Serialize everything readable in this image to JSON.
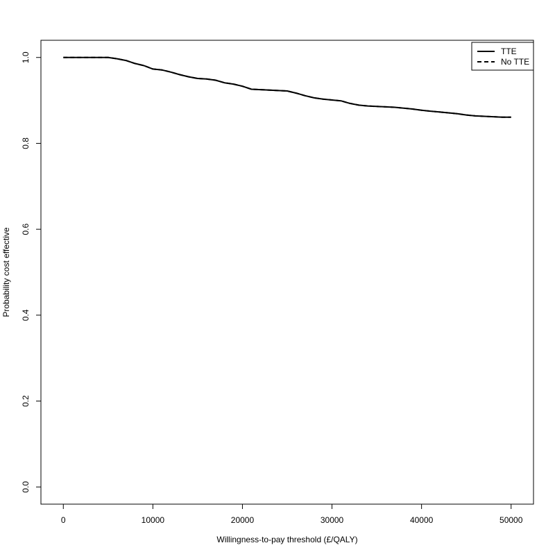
{
  "chart_data": {
    "type": "line",
    "title": "",
    "xlabel": "Willingness-to-pay threshold (£/QALY)",
    "ylabel": "Probability cost effective",
    "xlim": [
      -2500,
      52500
    ],
    "ylim": [
      -0.04,
      1.04
    ],
    "xticks": [
      0,
      10000,
      20000,
      30000,
      40000,
      50000
    ],
    "xtick_labels": [
      "0",
      "10000",
      "20000",
      "30000",
      "40000",
      "50000"
    ],
    "yticks": [
      0.0,
      0.2,
      0.4,
      0.6,
      0.8,
      1.0
    ],
    "ytick_labels": [
      "0.0",
      "0.2",
      "0.4",
      "0.6",
      "0.8",
      "1.0"
    ],
    "grid": false,
    "legend_position": "top-right",
    "series": [
      {
        "name": "TTE",
        "line_style": "solid",
        "color": "#000000",
        "x": [
          0,
          2000,
          4000,
          5000,
          6000,
          7000,
          8000,
          9000,
          10000,
          11000,
          12000,
          13000,
          14000,
          15000,
          16000,
          17000,
          18000,
          19000,
          20000,
          21000,
          22000,
          23000,
          24000,
          25000,
          26000,
          27000,
          28000,
          29000,
          30000,
          31000,
          32000,
          33000,
          34000,
          35000,
          36000,
          37000,
          38000,
          39000,
          40000,
          41000,
          42000,
          43000,
          44000,
          45000,
          46000,
          47000,
          48000,
          49000,
          50000
        ],
        "y": [
          1.0,
          1.0,
          1.0,
          1.0,
          0.997,
          0.993,
          0.986,
          0.981,
          0.973,
          0.971,
          0.966,
          0.96,
          0.955,
          0.951,
          0.95,
          0.947,
          0.941,
          0.938,
          0.933,
          0.926,
          0.925,
          0.924,
          0.923,
          0.922,
          0.917,
          0.911,
          0.906,
          0.903,
          0.901,
          0.899,
          0.893,
          0.889,
          0.887,
          0.886,
          0.885,
          0.884,
          0.882,
          0.88,
          0.877,
          0.875,
          0.873,
          0.871,
          0.869,
          0.866,
          0.864,
          0.863,
          0.862,
          0.861,
          0.861
        ]
      },
      {
        "name": "No TTE",
        "line_style": "dashed",
        "color": "#000000",
        "x": [
          0,
          2000,
          4000,
          5000,
          6000,
          7000,
          8000,
          9000,
          10000,
          11000,
          12000,
          13000,
          14000,
          15000,
          16000,
          17000,
          18000,
          19000,
          20000,
          21000,
          22000,
          23000,
          24000,
          25000,
          26000,
          27000,
          28000,
          29000,
          30000,
          31000,
          32000,
          33000,
          34000,
          35000,
          36000,
          37000,
          38000,
          39000,
          40000,
          41000,
          42000,
          43000,
          44000,
          45000,
          46000,
          47000,
          48000,
          49000,
          50000
        ],
        "y": [
          1.0,
          1.0,
          1.0,
          1.0,
          0.997,
          0.993,
          0.986,
          0.981,
          0.973,
          0.971,
          0.966,
          0.96,
          0.955,
          0.951,
          0.95,
          0.947,
          0.941,
          0.938,
          0.933,
          0.926,
          0.925,
          0.924,
          0.923,
          0.922,
          0.917,
          0.911,
          0.906,
          0.903,
          0.901,
          0.899,
          0.893,
          0.889,
          0.887,
          0.886,
          0.885,
          0.884,
          0.882,
          0.88,
          0.877,
          0.875,
          0.873,
          0.871,
          0.869,
          0.866,
          0.864,
          0.863,
          0.862,
          0.861,
          0.861
        ]
      }
    ]
  }
}
